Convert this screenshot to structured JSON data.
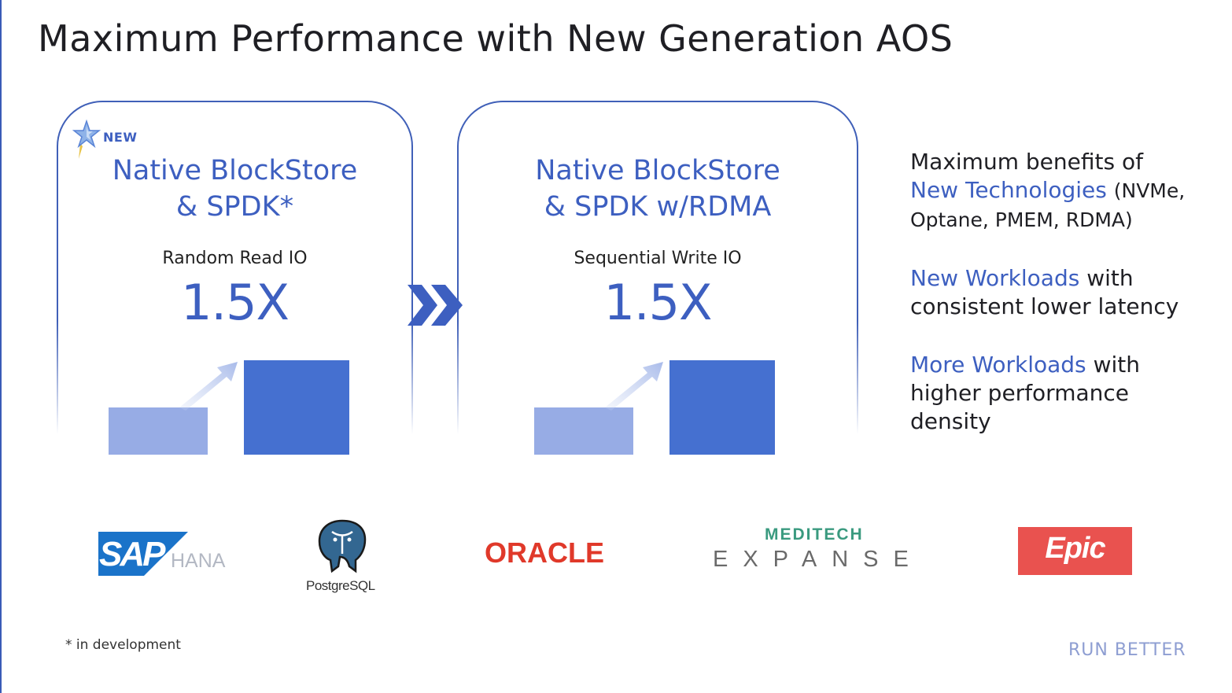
{
  "slide": {
    "title": "Maximum Performance with New Generation AOS",
    "footnote": "* in development",
    "tagline": "RUN BETTER",
    "accent_color": "#3d5fc0"
  },
  "panels": [
    {
      "badge": "NEW",
      "heading_line1": "Native BlockStore",
      "heading_line2": "& SPDK*",
      "metric_label": "Random Read IO",
      "metric_value": "1.5X"
    },
    {
      "heading_line1": "Native BlockStore",
      "heading_line2": "& SPDK w/RDMA",
      "metric_label": "Sequential Write IO",
      "metric_value": "1.5X"
    }
  ],
  "benefits": [
    {
      "lead": "Maximum benefits of",
      "highlight": "New Technologies",
      "detail": "(NVMe, Optane, PMEM, RDMA)"
    },
    {
      "highlight": "New Workloads",
      "rest": "with consistent lower latency"
    },
    {
      "highlight": "More Workloads",
      "rest": "with higher performance density"
    }
  ],
  "logos": {
    "sap": "SAP",
    "hana": "HANA",
    "postgres": "PostgreSQL",
    "oracle": "ORACLE",
    "meditech": "MEDITECH",
    "expanse": "EXPANSE",
    "epic": "Epic"
  }
}
